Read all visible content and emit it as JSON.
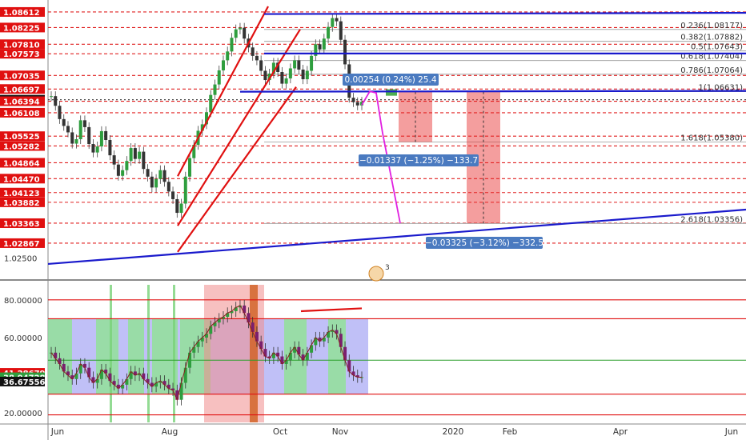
{
  "chart_data": {
    "type": "line",
    "instrument_panel": {
      "price_range": [
        1.0215,
        1.0875
      ],
      "price_labels": [
        {
          "value": 1.08612,
          "text": "1.08612",
          "style": "red"
        },
        {
          "value": 1.08225,
          "text": "1.08225",
          "style": "red"
        },
        {
          "value": 1.0781,
          "text": "1.07810",
          "style": "red"
        },
        {
          "value": 1.07573,
          "text": "1.07573",
          "style": "red"
        },
        {
          "value": 1.07035,
          "text": "1.07035",
          "style": "red"
        },
        {
          "value": 1.06697,
          "text": "1.06697",
          "style": "red"
        },
        {
          "value": 1.0643,
          "text": "1.06430",
          "style": "black"
        },
        {
          "value": 1.06394,
          "text": "1.06394",
          "style": "red"
        },
        {
          "value": 1.06108,
          "text": "1.06108",
          "style": "red"
        },
        {
          "value": 1.05525,
          "text": "1.05525",
          "style": "red"
        },
        {
          "value": 1.05282,
          "text": "1.05282",
          "style": "red"
        },
        {
          "value": 1.04864,
          "text": "1.04864",
          "style": "red"
        },
        {
          "value": 1.0447,
          "text": "1.04470",
          "style": "red"
        },
        {
          "value": 1.04123,
          "text": "1.04123",
          "style": "red"
        },
        {
          "value": 1.03882,
          "text": "1.03882",
          "style": "red"
        },
        {
          "value": 1.03363,
          "text": "1.03363",
          "style": "red"
        },
        {
          "value": 1.02867,
          "text": "1.02867",
          "style": "red"
        },
        {
          "value": 1.025,
          "text": "1.02500",
          "style": "plain"
        }
      ],
      "fib_levels": [
        {
          "text": "0.236(1.08177)",
          "value": 1.08177
        },
        {
          "text": "0.382(1.07882)",
          "value": 1.07882
        },
        {
          "text": "0.5(1.07643)",
          "value": 1.07643
        },
        {
          "text": "0.618(1.07404)",
          "value": 1.07404
        },
        {
          "text": "0.786(1.07064)",
          "value": 1.07064
        },
        {
          "text": "1(1.06631)",
          "value": 1.06631
        },
        {
          "text": "1.618(1.05380)",
          "value": 1.0538
        },
        {
          "text": "2.618(1.03356)",
          "value": 1.03356
        }
      ],
      "measure_labels": [
        "0.00254 (0.24%) 25.4",
        "−0.01337 (−1.25%) −133.7",
        "−0.03325 (−3.12%) −332.5"
      ],
      "event_marker": "3",
      "price_series": [
        1.0652,
        1.0628,
        1.0595,
        1.0578,
        1.0562,
        1.0534,
        1.0545,
        1.0592,
        1.0575,
        1.0533,
        1.0512,
        1.0527,
        1.0565,
        1.0543,
        1.0505,
        1.0482,
        1.0454,
        1.0468,
        1.0491,
        1.0523,
        1.0496,
        1.0514,
        1.0471,
        1.0452,
        1.0425,
        1.0446,
        1.0468,
        1.0439,
        1.0415,
        1.0396,
        1.0362,
        1.0385,
        1.0452,
        1.0498,
        1.0531,
        1.0566,
        1.0582,
        1.0612,
        1.0655,
        1.0681,
        1.0716,
        1.0741,
        1.0763,
        1.0797,
        1.0818,
        1.0822,
        1.0795,
        1.0773,
        1.0752,
        1.0741,
        1.0715,
        1.0692,
        1.0708,
        1.0735,
        1.0712,
        1.0683,
        1.0696,
        1.0721,
        1.0741,
        1.0718,
        1.0694,
        1.0715,
        1.0752,
        1.0781,
        1.0768,
        1.0795,
        1.0824,
        1.0846,
        1.0838,
        1.0792,
        1.0731,
        1.0648,
        1.0637,
        1.0629,
        1.0638
      ]
    },
    "oscillator_panel": {
      "y_range": [
        15,
        88
      ],
      "y_ticks": [
        {
          "value": 80,
          "text": "80.00000"
        },
        {
          "value": 60,
          "text": "60.00000"
        },
        {
          "value": 20,
          "text": "20.00000"
        }
      ],
      "labels": [
        {
          "value": 41.28679,
          "text": "41.28679",
          "style": "red"
        },
        {
          "value": 38.94728,
          "text": "38.94728",
          "style": "green"
        },
        {
          "value": 36.67556,
          "text": "36.67556",
          "style": "black"
        }
      ],
      "reference_levels": [
        80,
        70,
        48,
        30,
        19
      ],
      "series": [
        {
          "name": "",
          "values": [
            52,
            49,
            46,
            42,
            40,
            38,
            41,
            46,
            44,
            39,
            36,
            38,
            43,
            41,
            37,
            35,
            33,
            35,
            38,
            42,
            40,
            41,
            38,
            36,
            34,
            36,
            37,
            35,
            33,
            32,
            27,
            36,
            44,
            52,
            55,
            58,
            60,
            62,
            66,
            68,
            70,
            71,
            73,
            74,
            76,
            77,
            73,
            68,
            63,
            58,
            54,
            50,
            49,
            52,
            50,
            46,
            48,
            52,
            55,
            51,
            48,
            52,
            56,
            60,
            58,
            60,
            63,
            64,
            62,
            55,
            48,
            42,
            40,
            39,
            39
          ]
        }
      ]
    },
    "x_axis": {
      "tick_labels": [
        "Jun",
        "Aug",
        "Oct",
        "Nov",
        "2020",
        "Feb",
        "Apr",
        "Jun"
      ]
    }
  }
}
